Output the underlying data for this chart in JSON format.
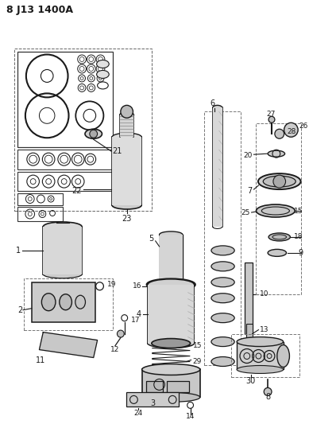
{
  "title": "8 J13 1400A",
  "bg_color": "#ffffff",
  "line_color": "#1a1a1a",
  "fig_width": 3.89,
  "fig_height": 5.33,
  "dpi": 100
}
